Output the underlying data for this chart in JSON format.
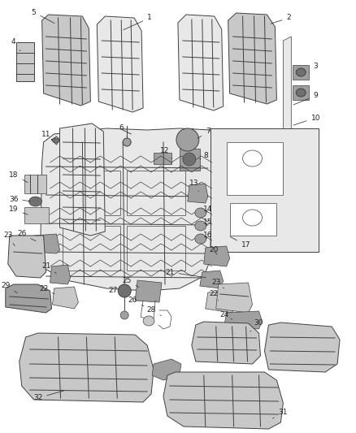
{
  "background_color": "#ffffff",
  "fig_width": 4.38,
  "fig_height": 5.33,
  "dpi": 100,
  "line_color": "#404040",
  "label_fontsize": 6.5,
  "label_color": "#222222",
  "light_gray": "#c8c8c8",
  "mid_gray": "#a0a0a0",
  "dark_gray": "#707070",
  "very_light": "#e8e8e8"
}
